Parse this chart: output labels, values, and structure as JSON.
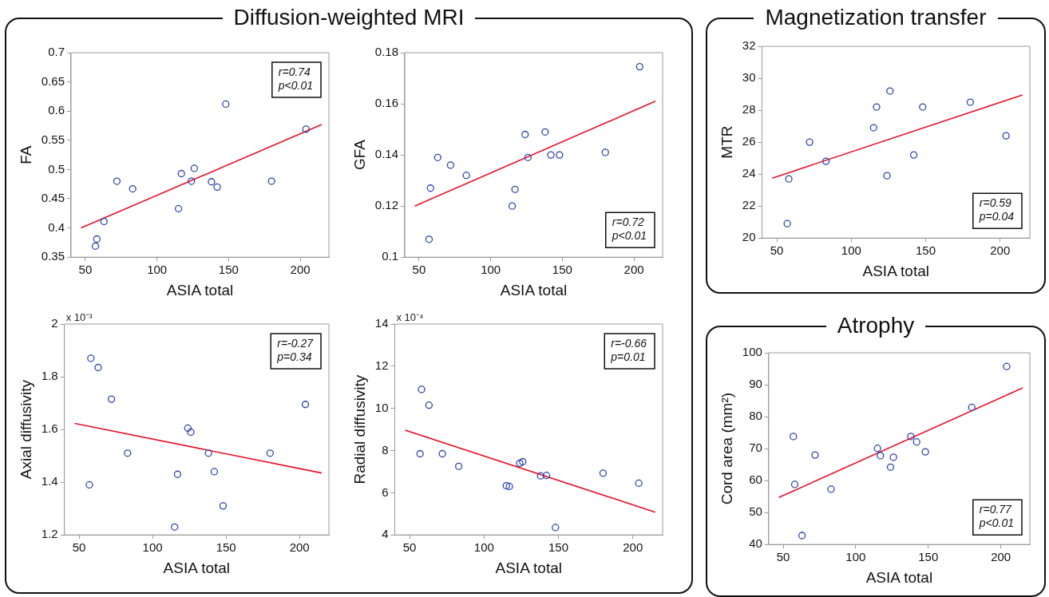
{
  "chart_data": [
    {
      "type": "scatter",
      "title": "Diffusion-weighted MRI",
      "xlabel": "ASIA total",
      "ylabel": "FA",
      "xlim": [
        40,
        220
      ],
      "xticks": [
        50,
        100,
        150,
        200
      ],
      "ylim": [
        0.35,
        0.7
      ],
      "yticks": [
        0.35,
        0.4,
        0.45,
        0.5,
        0.55,
        0.6,
        0.65,
        0.7
      ],
      "grid": false,
      "legend": false,
      "annotations": [
        "r=0.74",
        "p<0.01"
      ],
      "series": [
        {
          "type": "scatter",
          "marker": "circle",
          "color": "#2b44a8",
          "x": [
            57,
            58,
            63,
            72,
            83,
            115,
            117,
            124,
            126,
            138,
            142,
            148,
            180,
            204
          ],
          "values": [
            0.369,
            0.381,
            0.411,
            0.48,
            0.467,
            0.433,
            0.493,
            0.48,
            0.502,
            0.479,
            0.47,
            0.612,
            0.48,
            0.569
          ]
        },
        {
          "type": "line",
          "marker": "none",
          "color": "#e8102a",
          "x": [
            47,
            215
          ],
          "values": [
            0.4,
            0.577
          ]
        }
      ]
    },
    {
      "type": "scatter",
      "xlabel": "ASIA total",
      "ylabel": "GFA",
      "xlim": [
        40,
        220
      ],
      "xticks": [
        50,
        100,
        150,
        200
      ],
      "ylim": [
        0.1,
        0.18
      ],
      "yticks": [
        0.1,
        0.12,
        0.14,
        0.16,
        0.18
      ],
      "grid": false,
      "legend": false,
      "annotations": [
        "r=0.72",
        "p<0.01"
      ],
      "series": [
        {
          "type": "scatter",
          "marker": "circle",
          "color": "#2b44a8",
          "x": [
            57,
            58,
            63,
            72,
            83,
            115,
            117,
            124,
            126,
            138,
            142,
            148,
            180,
            204
          ],
          "values": [
            0.107,
            0.127,
            0.139,
            0.136,
            0.132,
            0.12,
            0.1265,
            0.148,
            0.139,
            0.149,
            0.14,
            0.14,
            0.141,
            0.1745
          ]
        },
        {
          "type": "line",
          "marker": "none",
          "color": "#e8102a",
          "x": [
            47,
            215
          ],
          "values": [
            0.12,
            0.161
          ]
        }
      ]
    },
    {
      "type": "scatter",
      "title": "Magnetization transfer",
      "xlabel": "ASIA total",
      "ylabel": "MTR",
      "xlim": [
        40,
        220
      ],
      "xticks": [
        50,
        100,
        150,
        200
      ],
      "ylim": [
        20,
        32
      ],
      "yticks": [
        20,
        22,
        24,
        26,
        28,
        30,
        32
      ],
      "grid": false,
      "legend": false,
      "annotations": [
        "r=0.59",
        "p=0.04"
      ],
      "series": [
        {
          "type": "scatter",
          "marker": "circle",
          "color": "#2b44a8",
          "x": [
            57,
            58,
            72,
            83,
            115,
            117,
            124,
            126,
            142,
            148,
            180,
            204
          ],
          "values": [
            20.9,
            23.7,
            26.0,
            24.8,
            26.9,
            28.2,
            23.9,
            29.2,
            25.2,
            28.2,
            28.5,
            26.4
          ]
        },
        {
          "type": "line",
          "marker": "none",
          "color": "#e8102a",
          "x": [
            47,
            215
          ],
          "values": [
            23.75,
            28.95
          ]
        }
      ]
    },
    {
      "type": "scatter",
      "xlabel": "ASIA total",
      "ylabel": "Axial diffusivity",
      "xlim": [
        40,
        220
      ],
      "xticks": [
        50,
        100,
        150,
        200
      ],
      "ylim": [
        1.2,
        2
      ],
      "yticks": [
        1.2,
        1.4,
        1.6,
        1.8,
        2
      ],
      "grid": false,
      "legend": false,
      "annotations": [
        "x 10⁻³",
        "r=-0.27",
        "p=0.34"
      ],
      "series": [
        {
          "type": "scatter",
          "marker": "circle",
          "color": "#2b44a8",
          "x": [
            57,
            58,
            63,
            72,
            83,
            115,
            117,
            124,
            126,
            138,
            142,
            148,
            180,
            204
          ],
          "values": [
            1.39,
            1.87,
            1.835,
            1.715,
            1.51,
            1.23,
            1.43,
            1.605,
            1.59,
            1.51,
            1.44,
            1.31,
            1.51,
            1.695
          ]
        },
        {
          "type": "line",
          "marker": "none",
          "color": "#e8102a",
          "x": [
            47,
            215
          ],
          "values": [
            1.623,
            1.435
          ]
        }
      ]
    },
    {
      "type": "scatter",
      "xlabel": "ASIA total",
      "ylabel": "Radial diffusivity",
      "xlim": [
        40,
        220
      ],
      "xticks": [
        50,
        100,
        150,
        200
      ],
      "ylim": [
        4,
        14
      ],
      "yticks": [
        4,
        6,
        8,
        10,
        12,
        14
      ],
      "grid": false,
      "legend": false,
      "annotations": [
        "x 10⁻⁴",
        "r=-0.66",
        "p=0.01"
      ],
      "series": [
        {
          "type": "scatter",
          "marker": "circle",
          "color": "#2b44a8",
          "x": [
            57,
            58,
            63,
            72,
            83,
            115,
            117,
            124,
            126,
            138,
            142,
            148,
            180,
            204
          ],
          "values": [
            7.85,
            10.9,
            10.15,
            7.85,
            7.25,
            6.33,
            6.3,
            7.4,
            7.47,
            6.8,
            6.82,
            4.35,
            6.93,
            6.45
          ]
        },
        {
          "type": "line",
          "marker": "none",
          "color": "#e8102a",
          "x": [
            47,
            215
          ],
          "values": [
            8.97,
            5.08
          ]
        }
      ]
    },
    {
      "type": "scatter",
      "title": "Atrophy",
      "xlabel": "ASIA total",
      "ylabel": "Cord area (mm²)",
      "xlim": [
        40,
        220
      ],
      "xticks": [
        50,
        100,
        150,
        200
      ],
      "ylim": [
        40,
        100
      ],
      "yticks": [
        40,
        50,
        60,
        70,
        80,
        90,
        100
      ],
      "grid": false,
      "legend": false,
      "annotations": [
        "r=0.77",
        "p<0.01"
      ],
      "series": [
        {
          "type": "scatter",
          "marker": "circle",
          "color": "#2b44a8",
          "x": [
            57,
            58,
            63,
            72,
            83,
            115,
            117,
            124,
            126,
            138,
            142,
            148,
            180,
            204
          ],
          "values": [
            73.8,
            58.8,
            42.8,
            68.0,
            57.3,
            70.1,
            67.8,
            64.2,
            67.3,
            73.8,
            72.1,
            69.0,
            82.9,
            95.7
          ]
        },
        {
          "type": "line",
          "marker": "none",
          "color": "#e8102a",
          "x": [
            47,
            215
          ],
          "values": [
            54.7,
            89.0
          ]
        }
      ]
    }
  ]
}
